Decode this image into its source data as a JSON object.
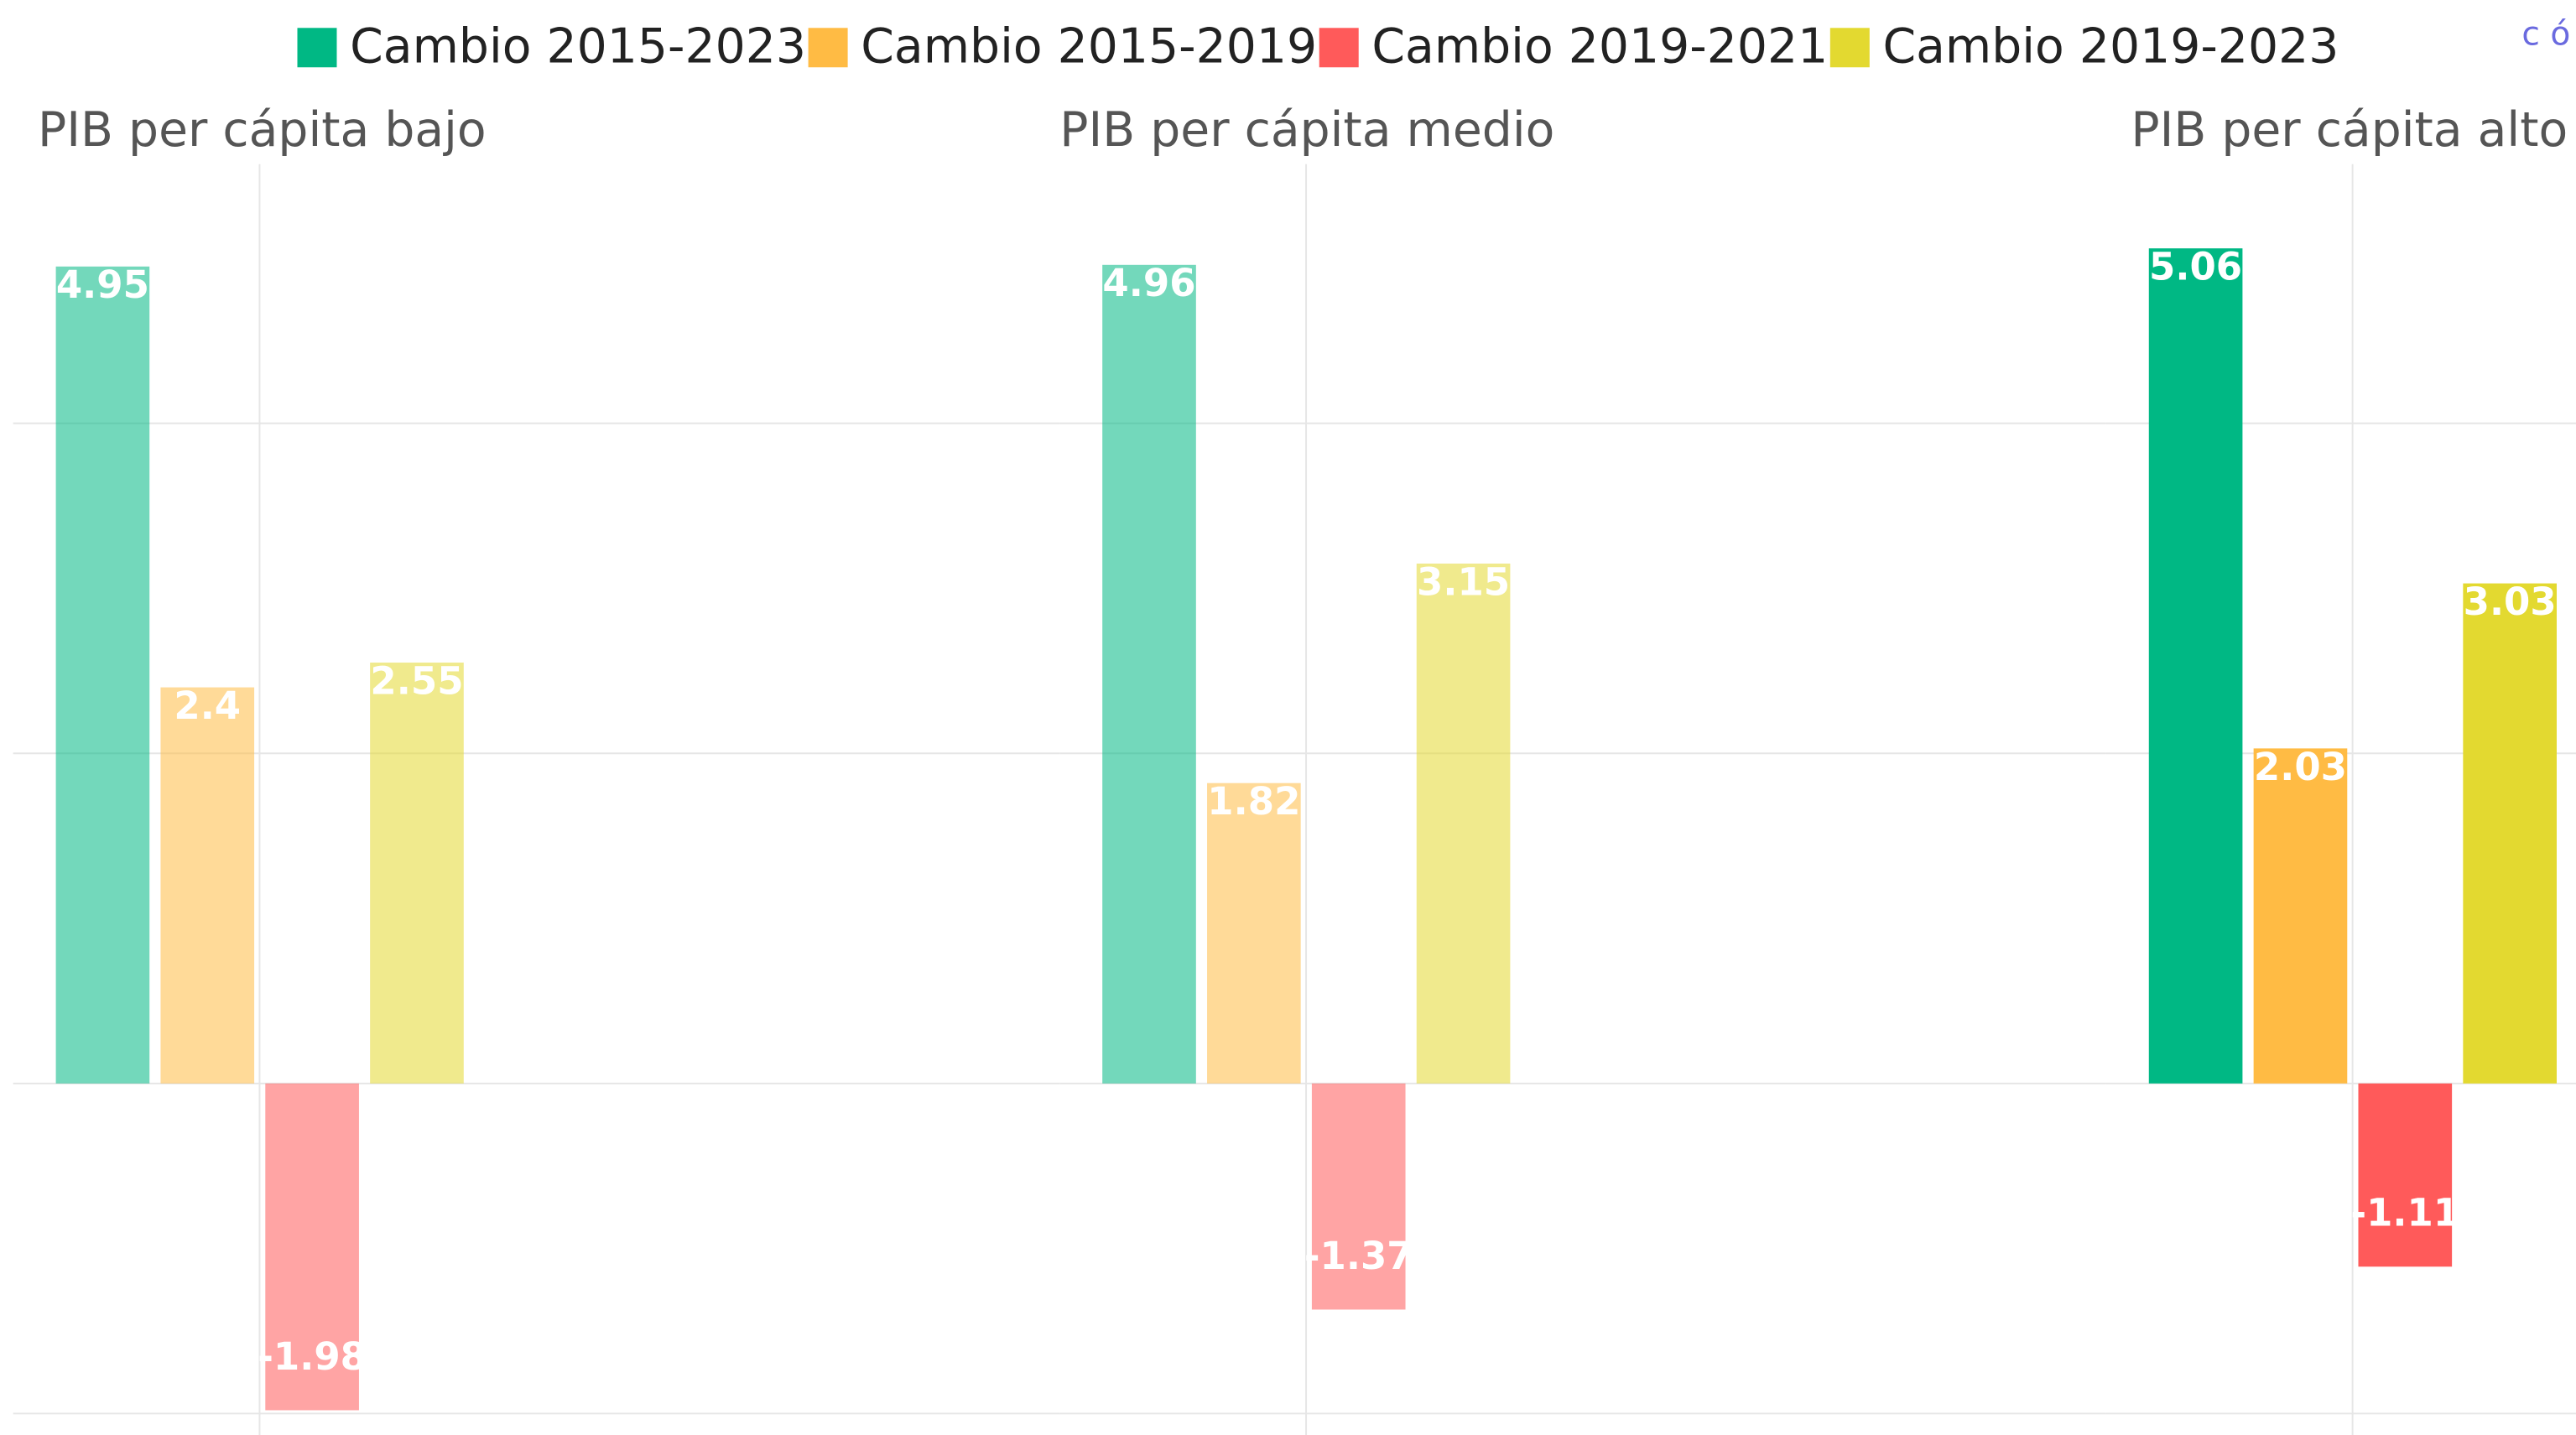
{
  "corner_text": "c ó",
  "chart_data": [
    {
      "type": "bar",
      "title": "PIB per cápita bajo",
      "ylim": [
        -2.13,
        5.57
      ],
      "yticks": [
        -2,
        0,
        2,
        4
      ],
      "grid": true,
      "series": [
        {
          "name": "Cambio 2015-2023",
          "color": "#00b884",
          "values": [
            4.95
          ]
        },
        {
          "name": "Cambio 2015-2019",
          "color": "#ffbb44",
          "values": [
            2.4
          ]
        },
        {
          "name": "Cambio 2019-2021",
          "color": "#ff5a5a",
          "values": [
            -1.98
          ]
        },
        {
          "name": "Cambio 2019-2023",
          "color": "#e3d930",
          "values": [
            2.55
          ]
        }
      ]
    },
    {
      "type": "bar",
      "title": "PIB per cápita medio",
      "ylim": [
        -2.13,
        5.57
      ],
      "yticks": [
        -2,
        0,
        2,
        4
      ],
      "grid": true,
      "series": [
        {
          "name": "Cambio 2015-2023",
          "color": "#00b884",
          "values": [
            4.96
          ]
        },
        {
          "name": "Cambio 2015-2019",
          "color": "#ffbb44",
          "values": [
            1.82
          ]
        },
        {
          "name": "Cambio 2019-2021",
          "color": "#ff5a5a",
          "values": [
            -1.37
          ]
        },
        {
          "name": "Cambio 2019-2023",
          "color": "#e3d930",
          "values": [
            3.15
          ]
        }
      ]
    },
    {
      "type": "bar",
      "title": "PIB per cápita alto",
      "ylim": [
        -2.13,
        5.57
      ],
      "yticks": [
        -2,
        0,
        2,
        4
      ],
      "grid": true,
      "series": [
        {
          "name": "Cambio 2015-2023",
          "color": "#00b884",
          "values": [
            5.06
          ]
        },
        {
          "name": "Cambio 2015-2019",
          "color": "#ffbb44",
          "values": [
            2.03
          ]
        },
        {
          "name": "Cambio 2019-2021",
          "color": "#ff5a5a",
          "values": [
            -1.11
          ]
        },
        {
          "name": "Cambio 2019-2023",
          "color": "#e3d930",
          "values": [
            3.03
          ]
        }
      ]
    }
  ]
}
